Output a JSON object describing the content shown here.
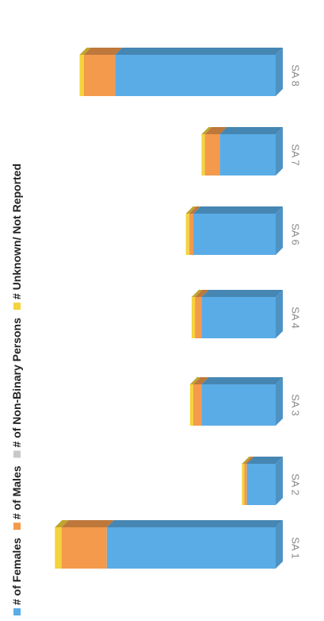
{
  "chart_data": {
    "type": "bar",
    "stacked": true,
    "orientation": "horizontal",
    "rotated": "90deg-clockwise",
    "style": "3d",
    "categories": [
      "SA 1",
      "SA 2",
      "SA 3",
      "SA 4",
      "SA 6",
      "SA 7",
      "SA 8"
    ],
    "series": [
      {
        "name": "# of Females",
        "color": "#5AACE6",
        "values": [
          205,
          35,
          90,
          90,
          100,
          68,
          195
        ]
      },
      {
        "name": "# of Males",
        "color": "#F39A4C",
        "values": [
          55,
          3,
          10,
          8,
          5,
          18,
          38
        ]
      },
      {
        "name": "# of Non-Binary Persons",
        "color": "#C8C8C8",
        "values": [
          0,
          0,
          0,
          0,
          0,
          0,
          0
        ]
      },
      {
        "name": "# Unknown/ Not Reported",
        "color": "#F5D33C",
        "values": [
          8,
          3,
          4,
          4,
          4,
          4,
          5
        ]
      }
    ],
    "title": "",
    "xlabel": "",
    "ylabel": "",
    "gridlines": false,
    "legend_position": "top"
  }
}
